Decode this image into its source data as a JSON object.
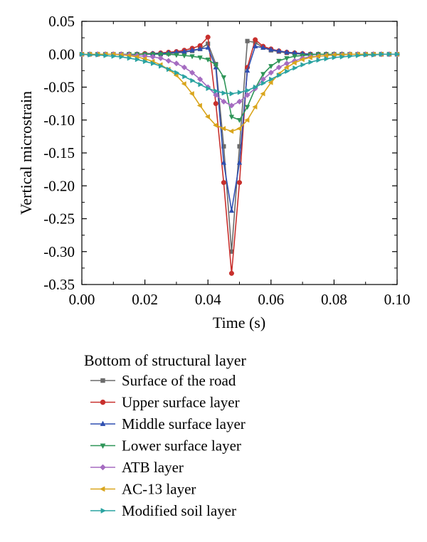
{
  "chart_data": {
    "type": "line",
    "xlabel": "Time (s)",
    "ylabel": "Vertical microstrain",
    "xlim": [
      0.0,
      0.1
    ],
    "ylim": [
      -0.35,
      0.05
    ],
    "xticks": [
      "0.00",
      "0.02",
      "0.04",
      "0.06",
      "0.08",
      "0.10"
    ],
    "yticks": [
      "0.05",
      "0.00",
      "-0.05",
      "-0.10",
      "-0.15",
      "-0.20",
      "-0.25",
      "-0.30",
      "-0.35"
    ],
    "grid": false,
    "legend_title": "Bottom of structural layer",
    "legend_position": "bottom",
    "x": [
      0.0,
      0.0025,
      0.005,
      0.0075,
      0.01,
      0.0125,
      0.015,
      0.0175,
      0.02,
      0.0225,
      0.025,
      0.0275,
      0.03,
      0.0325,
      0.035,
      0.0375,
      0.04,
      0.0425,
      0.045,
      0.0475,
      0.05,
      0.0525,
      0.055,
      0.0575,
      0.06,
      0.0625,
      0.065,
      0.0675,
      0.07,
      0.0725,
      0.075,
      0.0775,
      0.08,
      0.0825,
      0.085,
      0.0875,
      0.09,
      0.0925,
      0.095,
      0.0975,
      0.1
    ],
    "series": [
      {
        "name": "Surface of the road",
        "color": "#6b6b6b",
        "marker": "square",
        "values": [
          0,
          0,
          0,
          0,
          0,
          0,
          0,
          0,
          0,
          0,
          0,
          0.001,
          0.002,
          0.003,
          0.005,
          0.008,
          0.016,
          -0.015,
          -0.14,
          -0.3,
          -0.14,
          0.02,
          0.018,
          0.01,
          0.006,
          0.004,
          0.002,
          0.001,
          0,
          0,
          0,
          0,
          0,
          0,
          0,
          0,
          0,
          0,
          0,
          0,
          0
        ]
      },
      {
        "name": "Upper surface layer",
        "color": "#c8302d",
        "marker": "circle",
        "values": [
          0,
          0,
          0,
          0,
          0,
          0,
          0,
          0,
          0.001,
          0.001,
          0.002,
          0.003,
          0.004,
          0.006,
          0.009,
          0.013,
          0.026,
          -0.075,
          -0.195,
          -0.333,
          -0.195,
          -0.02,
          0.022,
          0.012,
          0.008,
          0.005,
          0.003,
          0.002,
          0.001,
          0,
          0,
          0,
          0,
          0,
          0,
          0,
          0,
          0,
          0,
          0,
          0
        ]
      },
      {
        "name": "Middle surface layer",
        "color": "#2f4fb0",
        "marker": "triangle-up",
        "values": [
          0,
          0,
          0,
          0,
          0,
          0,
          0,
          0,
          0,
          0.001,
          0.001,
          0.002,
          0.003,
          0.004,
          0.006,
          0.008,
          0.01,
          -0.02,
          -0.165,
          -0.238,
          -0.165,
          -0.025,
          0.012,
          0.01,
          0.007,
          0.005,
          0.003,
          0.002,
          0.001,
          0,
          0,
          0,
          0,
          0,
          0,
          0,
          0,
          0,
          0,
          0,
          0
        ]
      },
      {
        "name": "Lower surface layer",
        "color": "#2e9558",
        "marker": "triangle-down",
        "values": [
          0,
          0,
          0,
          0,
          0,
          0,
          0,
          0,
          0,
          0,
          0,
          0,
          -0.001,
          -0.002,
          -0.003,
          -0.005,
          -0.008,
          -0.016,
          -0.035,
          -0.095,
          -0.1,
          -0.08,
          -0.052,
          -0.03,
          -0.018,
          -0.01,
          -0.006,
          -0.003,
          -0.002,
          -0.001,
          0,
          0,
          0,
          0,
          0,
          0,
          0,
          0,
          0,
          0,
          0
        ]
      },
      {
        "name": "ATB layer",
        "color": "#a56cc1",
        "marker": "diamond",
        "values": [
          0,
          0,
          0,
          0,
          0,
          0,
          -0.001,
          -0.002,
          -0.003,
          -0.004,
          -0.006,
          -0.01,
          -0.014,
          -0.02,
          -0.028,
          -0.038,
          -0.05,
          -0.062,
          -0.072,
          -0.078,
          -0.072,
          -0.062,
          -0.052,
          -0.038,
          -0.028,
          -0.02,
          -0.014,
          -0.01,
          -0.006,
          -0.004,
          -0.003,
          -0.002,
          -0.001,
          -0.001,
          0,
          0,
          0,
          0,
          0,
          0,
          0
        ]
      },
      {
        "name": "AC-13 layer",
        "color": "#d9a51c",
        "marker": "triangle-left",
        "values": [
          0,
          0,
          0,
          0,
          0,
          -0.001,
          -0.002,
          -0.004,
          -0.007,
          -0.011,
          -0.016,
          -0.023,
          -0.032,
          -0.045,
          -0.06,
          -0.078,
          -0.095,
          -0.108,
          -0.113,
          -0.117,
          -0.113,
          -0.1,
          -0.08,
          -0.06,
          -0.043,
          -0.03,
          -0.02,
          -0.013,
          -0.008,
          -0.005,
          -0.003,
          -0.002,
          -0.001,
          -0.001,
          0,
          0,
          0,
          0,
          0,
          0,
          0
        ]
      },
      {
        "name": "Modified soil layer",
        "color": "#2aa3a1",
        "marker": "triangle-right",
        "values": [
          0,
          -0.001,
          -0.001,
          -0.002,
          -0.003,
          -0.004,
          -0.006,
          -0.008,
          -0.011,
          -0.014,
          -0.018,
          -0.023,
          -0.028,
          -0.034,
          -0.04,
          -0.046,
          -0.052,
          -0.056,
          -0.059,
          -0.06,
          -0.058,
          -0.055,
          -0.05,
          -0.044,
          -0.038,
          -0.032,
          -0.026,
          -0.021,
          -0.016,
          -0.012,
          -0.009,
          -0.007,
          -0.005,
          -0.004,
          -0.003,
          -0.002,
          -0.001,
          -0.001,
          0,
          0,
          0
        ]
      }
    ]
  }
}
